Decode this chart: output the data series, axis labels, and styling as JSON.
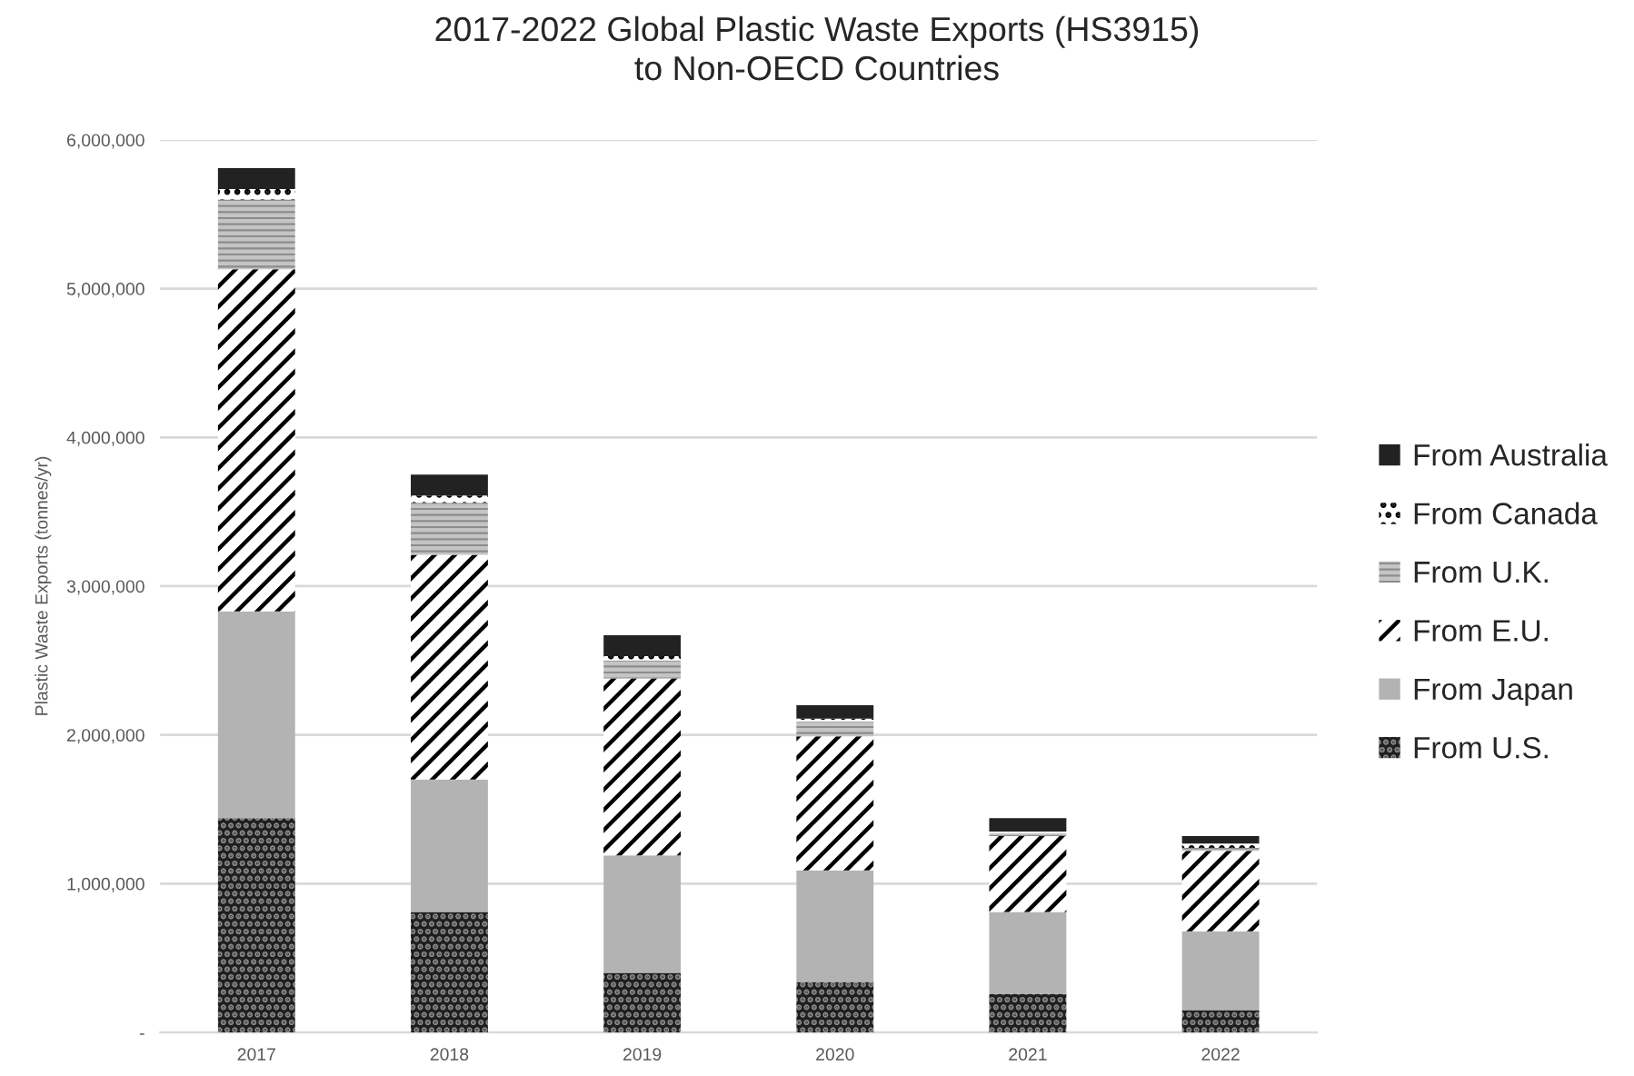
{
  "chart_data": {
    "type": "bar",
    "title": "2017-2022 Global Plastic Waste Exports (HS3915)\nto Non-OECD Countries",
    "ylabel": "Plastic Waste Exports (tonnes/yr)",
    "categories": [
      "2017",
      "2018",
      "2019",
      "2020",
      "2021",
      "2022"
    ],
    "series": [
      {
        "name": "From U.S.",
        "color": "#1f1f1f",
        "values": [
          1440000,
          810000,
          400000,
          340000,
          260000,
          150000
        ]
      },
      {
        "name": "From Japan",
        "color": "#b3b3b3",
        "values": [
          1390000,
          890000,
          790000,
          750000,
          550000,
          530000
        ]
      },
      {
        "name": "From E.U.",
        "color": "#ffffff",
        "values": [
          2300000,
          1510000,
          1190000,
          900000,
          510000,
          540000
        ]
      },
      {
        "name": "From U.K.",
        "color": "#8c8c8c",
        "values": [
          470000,
          350000,
          120000,
          100000,
          20000,
          20000
        ]
      },
      {
        "name": "From Canada",
        "color": "#ffffff",
        "values": [
          70000,
          50000,
          30000,
          20000,
          10000,
          30000
        ]
      },
      {
        "name": "From Australia",
        "color": "#222222",
        "values": [
          140000,
          140000,
          140000,
          90000,
          90000,
          50000
        ]
      }
    ],
    "stacked": true,
    "ylim": [
      0,
      6000000
    ],
    "yticks": [
      {
        "value": 0,
        "label": "-"
      },
      {
        "value": 1000000,
        "label": "1,000,000"
      },
      {
        "value": 2000000,
        "label": "2,000,000"
      },
      {
        "value": 3000000,
        "label": "3,000,000"
      },
      {
        "value": 4000000,
        "label": "4,000,000"
      },
      {
        "value": 5000000,
        "label": "5,000,000"
      },
      {
        "value": 6000000,
        "label": "6,000,000"
      }
    ],
    "grid": "y",
    "legend": "right"
  }
}
